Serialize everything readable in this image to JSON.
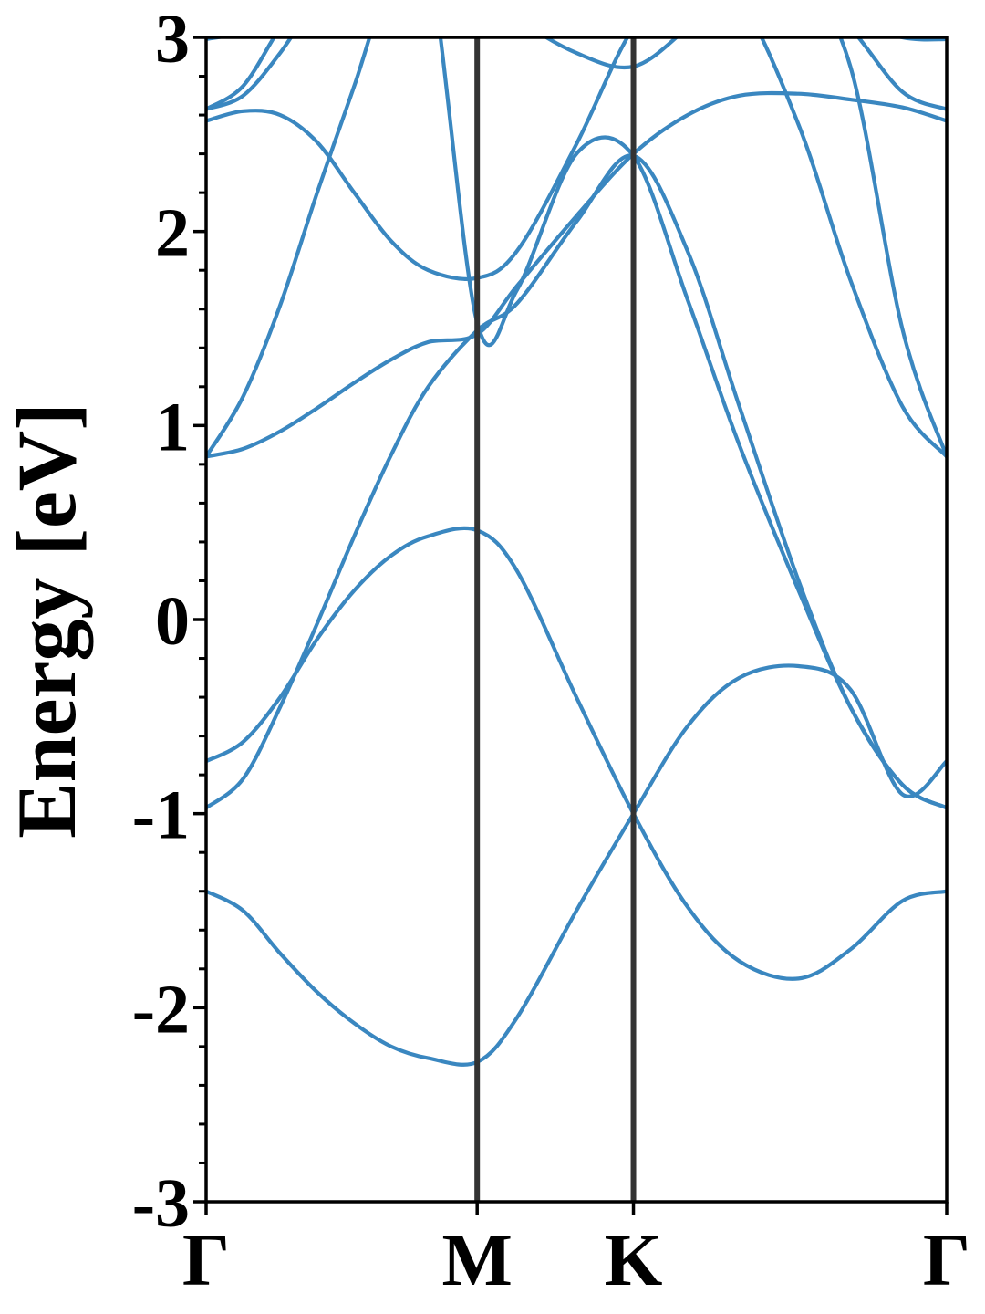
{
  "chart_data": {
    "type": "line",
    "title": "",
    "xlabel": "",
    "ylabel": "Energy [eV]",
    "ylim": [
      -3,
      3
    ],
    "grid": false,
    "legend": "none",
    "x_range": [
      0,
      1
    ],
    "high_symmetry_points": [
      {
        "label": "Γ",
        "x": 0.0
      },
      {
        "label": "M",
        "x": 0.366
      },
      {
        "label": "K",
        "x": 0.577
      },
      {
        "label": "Γ",
        "x": 1.0
      }
    ],
    "yticks": [
      -3,
      -2,
      -1,
      0,
      1,
      2,
      3
    ],
    "ytick_labels": [
      "-3",
      "-2",
      "-1",
      "0",
      "1",
      "2",
      "3"
    ],
    "y_minor_step": 0.2,
    "colors": {
      "band": "#3a87c0",
      "divider": "#333333",
      "axis": "#000000"
    },
    "series": [
      {
        "x": [
          0.0,
          0.05,
          0.1,
          0.15,
          0.2,
          0.25,
          0.3,
          0.366,
          0.42,
          0.5,
          0.577,
          0.65,
          0.72,
          0.8,
          0.87,
          0.94,
          1.0
        ],
        "y": [
          -1.4,
          -1.5,
          -1.72,
          -1.92,
          -2.08,
          -2.2,
          -2.26,
          -2.28,
          -2.05,
          -1.5,
          -1.0,
          -0.55,
          -0.3,
          -0.24,
          -0.36,
          -0.9,
          -0.73
        ]
      },
      {
        "x": [
          0.0,
          0.05,
          0.1,
          0.15,
          0.2,
          0.25,
          0.3,
          0.366,
          0.42,
          0.5,
          0.577,
          0.65,
          0.72,
          0.8,
          0.87,
          0.94,
          1.0
        ],
        "y": [
          -0.73,
          -0.63,
          -0.4,
          -0.1,
          0.15,
          0.33,
          0.43,
          0.46,
          0.25,
          -0.4,
          -1.0,
          -1.48,
          -1.76,
          -1.85,
          -1.7,
          -1.45,
          -1.4
        ]
      },
      {
        "x": [
          0.0,
          0.05,
          0.1,
          0.15,
          0.2,
          0.25,
          0.3,
          0.366,
          0.42,
          0.5,
          0.577,
          0.65,
          0.72,
          0.8,
          0.87,
          0.94,
          1.0
        ],
        "y": [
          -0.97,
          -0.82,
          -0.45,
          -0.02,
          0.43,
          0.85,
          1.2,
          1.49,
          1.63,
          2.05,
          2.39,
          1.9,
          1.1,
          0.2,
          -0.45,
          -0.85,
          -0.97
        ]
      },
      {
        "x": [
          0.0,
          0.05,
          0.1,
          0.15,
          0.2,
          0.25,
          0.3,
          0.366,
          0.42,
          0.5,
          0.577,
          0.65,
          0.72,
          0.8,
          0.87,
          0.94,
          1.0
        ],
        "y": [
          0.84,
          0.88,
          0.97,
          1.09,
          1.22,
          1.34,
          1.43,
          1.47,
          1.72,
          2.08,
          2.4,
          2.6,
          2.7,
          2.71,
          2.68,
          2.64,
          2.57
        ]
      },
      {
        "x": [
          0.0,
          0.05,
          0.1,
          0.15,
          0.2,
          0.25,
          0.3,
          0.366,
          0.42,
          0.5,
          0.577,
          0.65,
          0.72,
          0.8,
          0.87,
          0.94,
          1.0
        ],
        "y": [
          0.84,
          1.15,
          1.62,
          2.2,
          2.75,
          3.3,
          3.4,
          1.53,
          1.7,
          2.4,
          2.39,
          1.65,
          0.9,
          0.15,
          -0.45,
          -0.85,
          -0.97
        ]
      },
      {
        "x": [
          0.0,
          0.05,
          0.1,
          0.15,
          0.2,
          0.25,
          0.3,
          0.366,
          0.42,
          0.5,
          0.577,
          0.65,
          0.72,
          0.8,
          0.87,
          0.94,
          1.0
        ],
        "y": [
          2.57,
          2.62,
          2.6,
          2.46,
          2.2,
          1.95,
          1.8,
          1.76,
          1.9,
          2.45,
          3.05,
          3.3,
          3.2,
          2.55,
          1.75,
          1.1,
          0.84
        ]
      },
      {
        "x": [
          0.0,
          0.05,
          0.1,
          0.15,
          0.2,
          0.25,
          0.3,
          0.366,
          0.42,
          0.5,
          0.577,
          0.65,
          0.72,
          0.8,
          0.87,
          0.94,
          1.0
        ],
        "y": [
          2.63,
          2.7,
          2.92,
          3.2,
          3.4,
          3.5,
          3.45,
          3.3,
          3.1,
          2.92,
          2.85,
          3.05,
          3.3,
          3.3,
          2.85,
          1.5,
          0.84
        ]
      },
      {
        "x": [
          0.0,
          0.05,
          0.1,
          0.15,
          0.2,
          0.25,
          0.3,
          0.366,
          0.42,
          0.5,
          0.577,
          0.65,
          0.72,
          0.8,
          0.87,
          0.94,
          1.0
        ],
        "y": [
          2.63,
          2.75,
          3.05,
          3.3,
          3.5,
          3.5,
          3.4,
          3.3,
          3.2,
          3.1,
          3.05,
          3.15,
          3.3,
          3.3,
          3.05,
          2.72,
          2.63
        ]
      },
      {
        "x": [
          0.0,
          0.05,
          0.1,
          0.15,
          0.2,
          0.25,
          0.3,
          0.366,
          0.42,
          0.5,
          0.577,
          0.65,
          0.72,
          0.8,
          0.87,
          0.94,
          1.0
        ],
        "y": [
          2.99,
          3.05,
          3.3,
          3.5,
          3.6,
          3.6,
          3.5,
          3.4,
          3.3,
          3.2,
          3.15,
          3.2,
          3.3,
          3.35,
          3.1,
          3.0,
          2.99
        ]
      }
    ]
  }
}
